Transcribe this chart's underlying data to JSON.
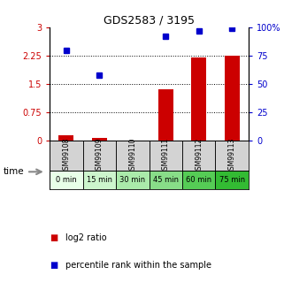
{
  "title": "GDS2583 / 3195",
  "samples": [
    "GSM99108",
    "GSM99109",
    "GSM99110",
    "GSM99111",
    "GSM99112",
    "GSM99113"
  ],
  "time_labels": [
    "0 min",
    "15 min",
    "30 min",
    "45 min",
    "60 min",
    "75 min"
  ],
  "log2_ratio": [
    0.15,
    0.07,
    0.01,
    1.35,
    2.2,
    2.25
  ],
  "percentile_rank": [
    80,
    58,
    null,
    92,
    97,
    99
  ],
  "ylim_left": [
    0,
    3
  ],
  "ylim_right": [
    0,
    100
  ],
  "yticks_left": [
    0,
    0.75,
    1.5,
    2.25,
    3
  ],
  "ytick_labels_left": [
    "0",
    "0.75",
    "1.5",
    "2.25",
    "3"
  ],
  "yticks_right": [
    0,
    25,
    50,
    75,
    100
  ],
  "ytick_labels_right": [
    "0",
    "25",
    "50",
    "75",
    "100%"
  ],
  "bar_color": "#cc0000",
  "dot_color": "#0000cc",
  "title_fontsize": 9,
  "time_colors": [
    "#e8ffe8",
    "#ccf5cc",
    "#aaeaaa",
    "#88dd88",
    "#55cc55",
    "#33bb33"
  ],
  "label_log2": "log2 ratio",
  "label_pct": "percentile rank within the sample",
  "bar_width": 0.45
}
